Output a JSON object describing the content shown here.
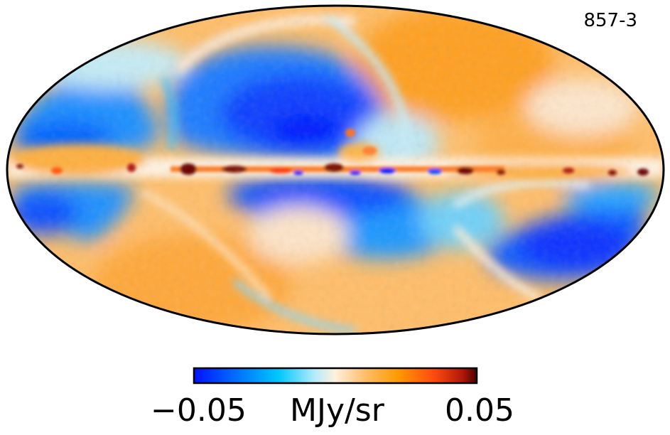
{
  "map": {
    "label": "857-3",
    "projection": "mollweide"
  },
  "colorbar": {
    "min_label": "−0.05",
    "max_label": "0.05",
    "unit": "MJy/sr",
    "min_value": -0.05,
    "max_value": 0.05,
    "colors": [
      "#0010ff",
      "#0070ff",
      "#00c8ff",
      "#b8ecfa",
      "#fff0dc",
      "#ffc070",
      "#ff9a00",
      "#ff4a10",
      "#b01808",
      "#4a0000"
    ]
  },
  "palette": {
    "blue_deep": "#0010ff",
    "blue": "#0070ff",
    "cyan": "#00c8ff",
    "pale_cyan": "#b8ecfa",
    "cream": "#fff0dc",
    "orange_light": "#ffc070",
    "orange": "#ff9a00",
    "red_orange": "#ff4a10",
    "dark_red": "#4a0000"
  }
}
